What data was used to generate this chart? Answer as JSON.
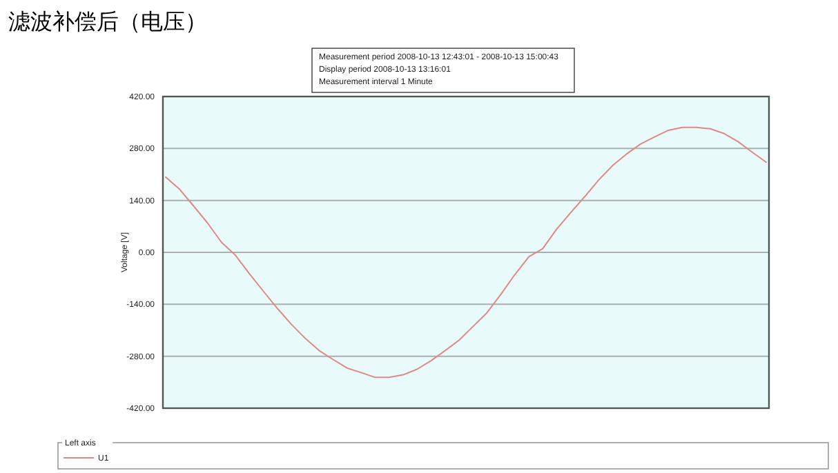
{
  "chart_data": {
    "type": "line",
    "title": "滤波补偿后（电压）",
    "annotations": [
      "Measurement period  2008-10-13 12:43:01 - 2008-10-13 15:00:43",
      "Display period  2008-10-13 13:16:01",
      "Measurement interval  1 Minute"
    ],
    "ylabel": "Voltage [V]",
    "legend_title": "Left axis",
    "legend": "bottom",
    "grid": "y",
    "ylim": [
      -420,
      420
    ],
    "yticks": [
      {
        "value": -420,
        "label": "-420.00"
      },
      {
        "value": -280,
        "label": "-280.00"
      },
      {
        "value": -140,
        "label": "-140.00"
      },
      {
        "value": 0,
        "label": "0.00"
      },
      {
        "value": 140,
        "label": "140.00"
      },
      {
        "value": 280,
        "label": "280.00"
      },
      {
        "value": 420,
        "label": "420.00"
      }
    ],
    "categories": [
      null,
      null,
      null,
      null,
      null,
      null,
      null,
      null,
      null,
      null,
      null,
      null,
      null,
      null,
      null,
      null,
      null,
      null,
      null,
      null,
      null,
      null,
      null,
      null,
      null,
      null,
      null,
      null,
      null,
      null,
      null,
      null,
      null,
      null,
      null,
      null,
      null,
      null,
      null,
      null,
      null,
      null,
      null,
      null
    ],
    "series": [
      {
        "name": "U1",
        "color": "#e08888",
        "values": [
          203,
          170,
          125,
          79,
          27,
          -8,
          -58,
          -105,
          -151,
          -194,
          -232,
          -265,
          -289,
          -312,
          -324,
          -337,
          -337,
          -330,
          -315,
          -292,
          -265,
          -237,
          -200,
          -163,
          -113,
          -60,
          -12,
          10,
          63,
          107,
          150,
          195,
          234,
          265,
          292,
          311,
          329,
          337,
          337,
          333,
          320,
          298,
          270,
          243
        ]
      }
    ]
  }
}
